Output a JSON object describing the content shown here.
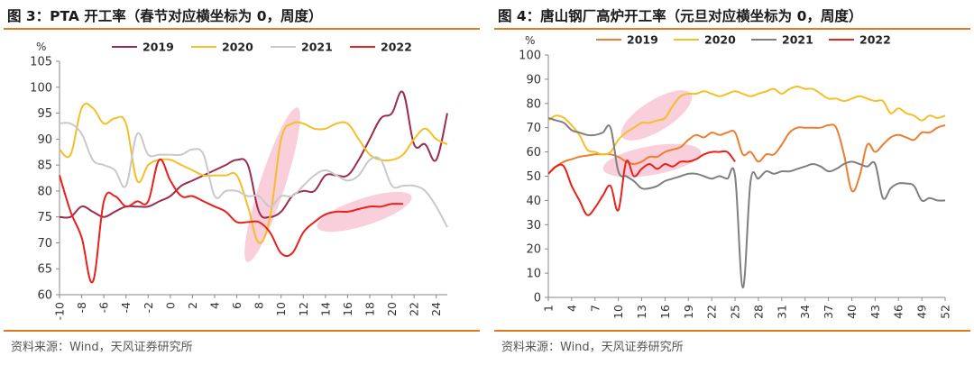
{
  "panels": [
    {
      "title": "图 3：PTA 开工率（春节对应横坐标为 0，周度）",
      "source": "资料来源：Wind，天风证券研究所"
    },
    {
      "title": "图 4：唐山钢厂高炉开工率（元旦对应横坐标为 0，周度）",
      "source": "资料来源：Wind，天风证券研究所"
    }
  ],
  "chart_data": [
    {
      "type": "line",
      "ylabel": "%",
      "ylim": [
        60,
        105
      ],
      "y_ticks": [
        60,
        65,
        70,
        75,
        80,
        85,
        90,
        95,
        100,
        105
      ],
      "xlim": [
        -10,
        25
      ],
      "x_ticks": [
        -10,
        -8,
        -6,
        -4,
        -2,
        0,
        2,
        4,
        6,
        8,
        10,
        12,
        14,
        16,
        18,
        20,
        22,
        24
      ],
      "x_tick_rotation": -90,
      "grid": false,
      "legend": "top",
      "series": [
        {
          "name": "2019",
          "color": "#9b2c4f",
          "x": [
            -10,
            -9,
            -8,
            -7,
            -6,
            -5,
            -4,
            -3,
            -2,
            -1,
            0,
            1,
            2,
            3,
            4,
            5,
            6,
            7,
            8,
            9,
            10,
            11,
            12,
            13,
            14,
            15,
            16,
            17,
            18,
            19,
            20,
            21,
            22,
            23,
            24,
            25
          ],
          "y": [
            75,
            75,
            77,
            76,
            75,
            76,
            77,
            77,
            77,
            78,
            79,
            81,
            82,
            83,
            84,
            85,
            86,
            85,
            76,
            75,
            76,
            79,
            80,
            80,
            83,
            83,
            83,
            86,
            90,
            94,
            95,
            99,
            89,
            89,
            86,
            95
          ]
        },
        {
          "name": "2020",
          "color": "#f5bf27",
          "x": [
            -10,
            -9,
            -8,
            -7,
            -6,
            -5,
            -4,
            -3,
            -2,
            -1,
            0,
            1,
            2,
            3,
            4,
            5,
            6,
            7,
            8,
            9,
            10,
            11,
            12,
            13,
            14,
            15,
            16,
            17,
            18,
            19,
            20,
            21,
            22,
            23,
            24,
            25
          ],
          "y": [
            88,
            87,
            96,
            96,
            93,
            94,
            93,
            82,
            85,
            86,
            86,
            85,
            84,
            83,
            83,
            83,
            83,
            77,
            70,
            75,
            90,
            93,
            93,
            92,
            92,
            93,
            93,
            90,
            87,
            86,
            86,
            87,
            90,
            92,
            90,
            89
          ]
        },
        {
          "name": "2021",
          "color": "#c9c9c9",
          "x": [
            -10,
            -9,
            -8,
            -7,
            -6,
            -5,
            -4,
            -3,
            -2,
            -1,
            0,
            1,
            2,
            3,
            4,
            5,
            6,
            7,
            8,
            9,
            10,
            11,
            12,
            13,
            14,
            15,
            16,
            17,
            18,
            19,
            20,
            21,
            22,
            23,
            24,
            25
          ],
          "y": [
            93,
            93,
            91,
            86,
            85,
            84,
            81,
            91,
            87,
            87,
            87,
            87,
            88,
            87,
            79,
            80,
            80,
            79,
            79,
            77,
            79,
            79,
            81,
            83,
            84,
            83,
            82,
            83,
            86,
            86,
            81,
            81,
            81,
            80,
            77,
            73
          ]
        },
        {
          "name": "2022",
          "color": "#e8211b",
          "x": [
            -10,
            -9,
            -8,
            -7,
            -6,
            -5,
            -4,
            -3,
            -2,
            -1,
            0,
            1,
            2,
            3,
            4,
            5,
            6,
            7,
            8,
            9,
            10,
            11,
            12,
            13,
            14,
            15,
            16,
            17,
            18,
            19,
            20,
            21
          ],
          "y": [
            83,
            76,
            71,
            62.5,
            78,
            79,
            77,
            78,
            78,
            86,
            82,
            79,
            79,
            78,
            77,
            76,
            74,
            74,
            74,
            72,
            68,
            68,
            72,
            74,
            75.5,
            76,
            76,
            76.5,
            77,
            77,
            77.5,
            77.5
          ]
        }
      ]
    },
    {
      "type": "line",
      "ylabel": "%",
      "ylim": [
        0,
        100
      ],
      "y_ticks": [
        0,
        10,
        20,
        30,
        40,
        50,
        60,
        70,
        80,
        90,
        100
      ],
      "xlim": [
        1,
        52
      ],
      "x_ticks": [
        1,
        4,
        7,
        10,
        13,
        16,
        19,
        22,
        25,
        28,
        31,
        34,
        37,
        40,
        43,
        46,
        49,
        52
      ],
      "x_tick_rotation": -90,
      "grid": false,
      "legend": "top",
      "series": [
        {
          "name": "2019",
          "color": "#ed7d31",
          "x": [
            1,
            2,
            3,
            4,
            5,
            6,
            7,
            8,
            9,
            10,
            11,
            12,
            13,
            14,
            15,
            16,
            17,
            18,
            19,
            20,
            21,
            22,
            23,
            24,
            25,
            26,
            27,
            28,
            29,
            30,
            31,
            32,
            33,
            34,
            35,
            36,
            37,
            38,
            39,
            40,
            41,
            42,
            43,
            44,
            45,
            46,
            47,
            48,
            49,
            50,
            51,
            52
          ],
          "y": [
            51,
            54,
            56,
            57,
            58,
            58.5,
            59,
            59,
            59,
            58,
            56,
            55,
            56,
            58,
            58,
            60,
            61,
            62,
            65,
            67,
            66,
            68,
            67,
            68,
            68,
            59,
            60,
            56,
            59,
            59,
            63,
            68,
            70,
            70,
            70,
            70,
            71,
            70,
            59,
            44,
            50,
            63,
            60,
            63,
            66,
            67,
            66,
            65,
            68,
            68,
            70,
            71
          ]
        },
        {
          "name": "2020",
          "color": "#f5bf27",
          "x": [
            1,
            2,
            3,
            4,
            5,
            6,
            7,
            8,
            9,
            10,
            11,
            12,
            13,
            14,
            15,
            16,
            17,
            18,
            19,
            20,
            21,
            22,
            23,
            24,
            25,
            26,
            27,
            28,
            29,
            30,
            31,
            32,
            33,
            34,
            35,
            36,
            37,
            38,
            39,
            40,
            41,
            42,
            43,
            44,
            45,
            46,
            47,
            48,
            49,
            50,
            51,
            52
          ],
          "y": [
            73,
            75,
            74,
            71,
            67,
            61,
            60,
            59,
            60,
            65,
            68,
            70,
            72,
            72,
            73,
            74,
            79,
            83,
            84,
            84,
            85,
            84,
            83,
            84,
            85,
            84,
            83,
            84,
            85,
            86,
            84,
            86,
            87,
            86,
            86,
            84,
            82,
            82,
            81,
            82,
            83,
            82,
            81,
            81,
            76,
            78,
            76,
            75,
            73,
            75,
            74,
            75
          ]
        },
        {
          "name": "2021",
          "color": "#7f7f7f",
          "x": [
            1,
            2,
            3,
            4,
            5,
            6,
            7,
            8,
            9,
            10,
            11,
            12,
            13,
            14,
            15,
            16,
            17,
            18,
            19,
            20,
            21,
            22,
            23,
            24,
            25,
            26,
            27,
            28,
            29,
            30,
            31,
            32,
            33,
            34,
            35,
            36,
            37,
            38,
            39,
            40,
            41,
            42,
            43,
            44,
            45,
            46,
            47,
            48,
            49,
            50,
            51,
            52
          ],
          "y": [
            74,
            73,
            72,
            69,
            68,
            67,
            67,
            68,
            70,
            52,
            50,
            48,
            45,
            45,
            46,
            48,
            49,
            50,
            51,
            51,
            50,
            49,
            50,
            49,
            50,
            4,
            48,
            49,
            52,
            51,
            52,
            52,
            53,
            54,
            55,
            54,
            52,
            53,
            55,
            56,
            55,
            54,
            55,
            41,
            45,
            47,
            47,
            46,
            40,
            41,
            40,
            40
          ]
        },
        {
          "name": "2022",
          "color": "#e8211b",
          "x": [
            1,
            2,
            3,
            4,
            5,
            6,
            7,
            8,
            9,
            10,
            11,
            12,
            13,
            14,
            15,
            16,
            17,
            18,
            19,
            20,
            21,
            22,
            23,
            24,
            25
          ],
          "y": [
            51,
            54,
            54,
            46,
            40,
            34,
            37,
            42,
            46,
            36,
            56,
            50,
            53,
            55,
            53,
            55,
            54,
            56,
            56,
            57,
            59,
            60,
            60,
            60,
            56
          ]
        }
      ]
    }
  ]
}
